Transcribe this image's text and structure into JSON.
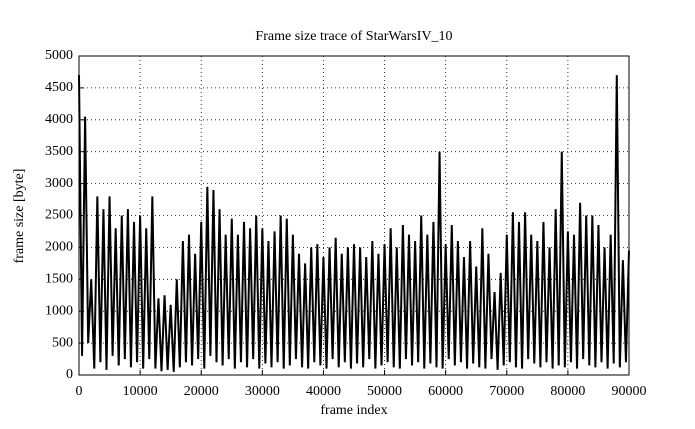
{
  "chart_data": {
    "type": "line",
    "title": "Frame size trace of StarWarsIV_10",
    "x_label": "frame index",
    "y_label": "frame size [byte]",
    "x": [
      0,
      500,
      1000,
      1500,
      2000,
      2500,
      3000,
      3500,
      4000,
      4500,
      5000,
      5500,
      6000,
      6500,
      7000,
      7500,
      8000,
      8500,
      9000,
      9500,
      10000,
      10500,
      11000,
      11500,
      12000,
      12500,
      13000,
      13500,
      14000,
      14500,
      15000,
      15500,
      16000,
      16500,
      17000,
      17500,
      18000,
      18500,
      19000,
      19500,
      20000,
      20500,
      21000,
      21500,
      22000,
      22500,
      23000,
      23500,
      24000,
      24500,
      25000,
      25500,
      26000,
      26500,
      27000,
      27500,
      28000,
      28500,
      29000,
      29500,
      30000,
      30500,
      31000,
      31500,
      32000,
      32500,
      33000,
      33500,
      34000,
      34500,
      35000,
      35500,
      36000,
      36500,
      37000,
      37500,
      38000,
      38500,
      39000,
      39500,
      40000,
      40500,
      41000,
      41500,
      42000,
      42500,
      43000,
      43500,
      44000,
      44500,
      45000,
      45500,
      46000,
      46500,
      47000,
      47500,
      48000,
      48500,
      49000,
      49500,
      50000,
      50500,
      51000,
      51500,
      52000,
      52500,
      53000,
      53500,
      54000,
      54500,
      55000,
      55500,
      56000,
      56500,
      57000,
      57500,
      58000,
      58500,
      59000,
      59500,
      60000,
      60500,
      61000,
      61500,
      62000,
      62500,
      63000,
      63500,
      64000,
      64500,
      65000,
      65500,
      66000,
      66500,
      67000,
      67500,
      68000,
      68500,
      69000,
      69500,
      70000,
      70500,
      71000,
      71500,
      72000,
      72500,
      73000,
      73500,
      74000,
      74500,
      75000,
      75500,
      76000,
      76500,
      77000,
      77500,
      78000,
      78500,
      79000,
      79500,
      80000,
      80500,
      81000,
      81500,
      82000,
      82500,
      83000,
      83500,
      84000,
      84500,
      85000,
      85500,
      86000,
      86500,
      87000,
      87500,
      88000,
      88500,
      89000,
      89500,
      90000
    ],
    "series": [
      {
        "name": "frame size",
        "color": "#000000",
        "values": [
          4700,
          300,
          4050,
          500,
          1500,
          100,
          2800,
          200,
          2600,
          80,
          2800,
          300,
          2300,
          150,
          2500,
          250,
          2600,
          120,
          2400,
          200,
          2500,
          100,
          2300,
          250,
          2800,
          100,
          1200,
          60,
          1250,
          80,
          1100,
          50,
          1500,
          120,
          2100,
          200,
          2200,
          150,
          1900,
          250,
          2400,
          100,
          2950,
          300,
          2900,
          200,
          2600,
          150,
          2200,
          250,
          2450,
          100,
          2200,
          200,
          2400,
          120,
          2300,
          250,
          2500,
          100,
          2300,
          180,
          2100,
          120,
          2250,
          200,
          2500,
          100,
          2450,
          150,
          2200,
          250,
          1900,
          120,
          1750,
          100,
          2000,
          200,
          2050,
          150,
          1850,
          100,
          2000,
          250,
          2150,
          120,
          1900,
          200,
          2000,
          100,
          2050,
          180,
          2000,
          120,
          1850,
          250,
          2100,
          100,
          1900,
          150,
          2050,
          200,
          2300,
          120,
          2000,
          100,
          2350,
          250,
          2200,
          150,
          2100,
          200,
          2500,
          100,
          2200,
          180,
          2400,
          120,
          3500,
          100,
          2050,
          250,
          2350,
          150,
          2100,
          200,
          1850,
          100,
          2100,
          180,
          1700,
          120,
          2300,
          100,
          1900,
          250,
          1300,
          80,
          1600,
          150,
          2200,
          200,
          2550,
          120,
          2400,
          100,
          2550,
          250,
          2200,
          180,
          2100,
          120,
          2400,
          200,
          2000,
          100,
          2600,
          150,
          3500,
          120,
          2250,
          200,
          2200,
          100,
          2700,
          250,
          2500,
          150,
          2500,
          120,
          2350,
          200,
          2000,
          100,
          2200,
          180,
          4700,
          120,
          1800,
          200,
          1950
        ]
      }
    ],
    "xlim": [
      0,
      90000
    ],
    "ylim": [
      0,
      5000
    ],
    "xticks": [
      0,
      10000,
      20000,
      30000,
      40000,
      50000,
      60000,
      70000,
      80000,
      90000
    ],
    "yticks": [
      0,
      500,
      1000,
      1500,
      2000,
      2500,
      3000,
      3500,
      4000,
      4500,
      5000
    ],
    "grid": true
  }
}
